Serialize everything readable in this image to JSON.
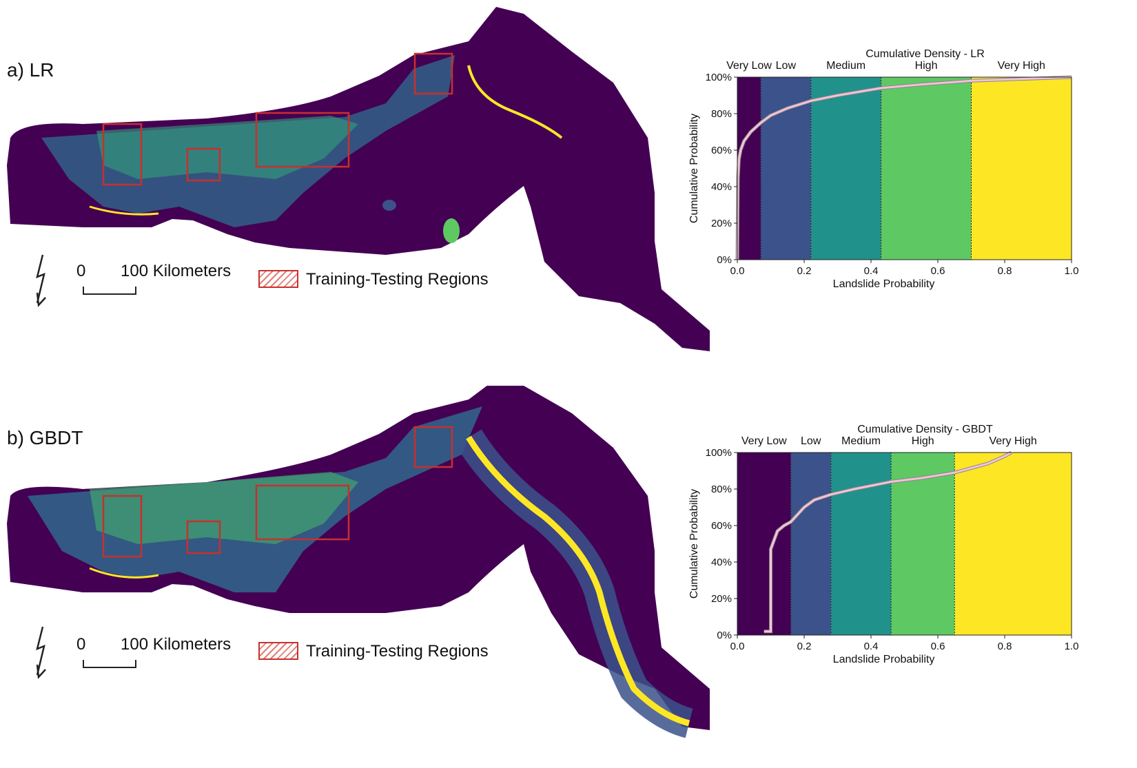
{
  "colors": {
    "very_low": "#440154",
    "low": "#3b528b",
    "medium": "#21918c",
    "high": "#5ec962",
    "very_high": "#fde725",
    "curve": "#f4c2d6",
    "training_box": "#c8302c"
  },
  "panels": [
    {
      "label": "a) LR",
      "legend": {
        "scale_zero": "0",
        "scale_distance": "100 Kilometers",
        "training_label": "Training-Testing Regions",
        "north_arrow_icon": "north-arrow-icon"
      },
      "chart_data": {
        "type": "area",
        "title": "Cumulative Density - LR",
        "xlabel": "Landslide Probability",
        "ylabel": "Cumulative Probability",
        "xlim": [
          0,
          1
        ],
        "ylim": [
          0,
          100
        ],
        "x_ticks": [
          "0.0",
          "0.2",
          "0.4",
          "0.6",
          "0.8",
          "1.0"
        ],
        "y_ticks": [
          "0%",
          "20%",
          "40%",
          "60%",
          "80%",
          "100%"
        ],
        "classes": [
          {
            "name": "Very Low",
            "from": 0.0,
            "to": 0.07
          },
          {
            "name": "Low",
            "from": 0.07,
            "to": 0.22
          },
          {
            "name": "Medium",
            "from": 0.22,
            "to": 0.43
          },
          {
            "name": "High",
            "from": 0.43,
            "to": 0.7
          },
          {
            "name": "Very High",
            "from": 0.7,
            "to": 1.0
          }
        ],
        "curve": {
          "x": [
            0.0,
            0.002,
            0.005,
            0.01,
            0.02,
            0.04,
            0.07,
            0.1,
            0.15,
            0.22,
            0.3,
            0.43,
            0.55,
            0.7,
            0.85,
            1.0
          ],
          "y": [
            0,
            45,
            55,
            60,
            65,
            70,
            75,
            79,
            83,
            87,
            90,
            94,
            96,
            98,
            99,
            100
          ]
        }
      }
    },
    {
      "label": "b) GBDT",
      "legend": {
        "scale_zero": "0",
        "scale_distance": "100 Kilometers",
        "training_label": "Training-Testing Regions",
        "north_arrow_icon": "north-arrow-icon"
      },
      "chart_data": {
        "type": "area",
        "title": "Cumulative Density - GBDT",
        "xlabel": "Landslide Probability",
        "ylabel": "Cumulative Probability",
        "xlim": [
          0,
          1
        ],
        "ylim": [
          0,
          100
        ],
        "x_ticks": [
          "0.0",
          "0.2",
          "0.4",
          "0.6",
          "0.8",
          "1.0"
        ],
        "y_ticks": [
          "0%",
          "20%",
          "40%",
          "60%",
          "80%",
          "100%"
        ],
        "classes": [
          {
            "name": "Very Low",
            "from": 0.0,
            "to": 0.16
          },
          {
            "name": "Low",
            "from": 0.16,
            "to": 0.28
          },
          {
            "name": "Medium",
            "from": 0.28,
            "to": 0.46
          },
          {
            "name": "High",
            "from": 0.46,
            "to": 0.65
          },
          {
            "name": "Very High",
            "from": 0.65,
            "to": 1.0
          }
        ],
        "curve": {
          "x": [
            0.08,
            0.1,
            0.1,
            0.11,
            0.12,
            0.14,
            0.16,
            0.18,
            0.2,
            0.23,
            0.28,
            0.35,
            0.46,
            0.55,
            0.65,
            0.75,
            0.8,
            0.82
          ],
          "y": [
            2,
            2,
            47,
            52,
            57,
            60,
            62,
            66,
            70,
            74,
            77,
            80,
            84,
            86,
            89,
            94,
            98,
            100
          ]
        }
      }
    }
  ]
}
